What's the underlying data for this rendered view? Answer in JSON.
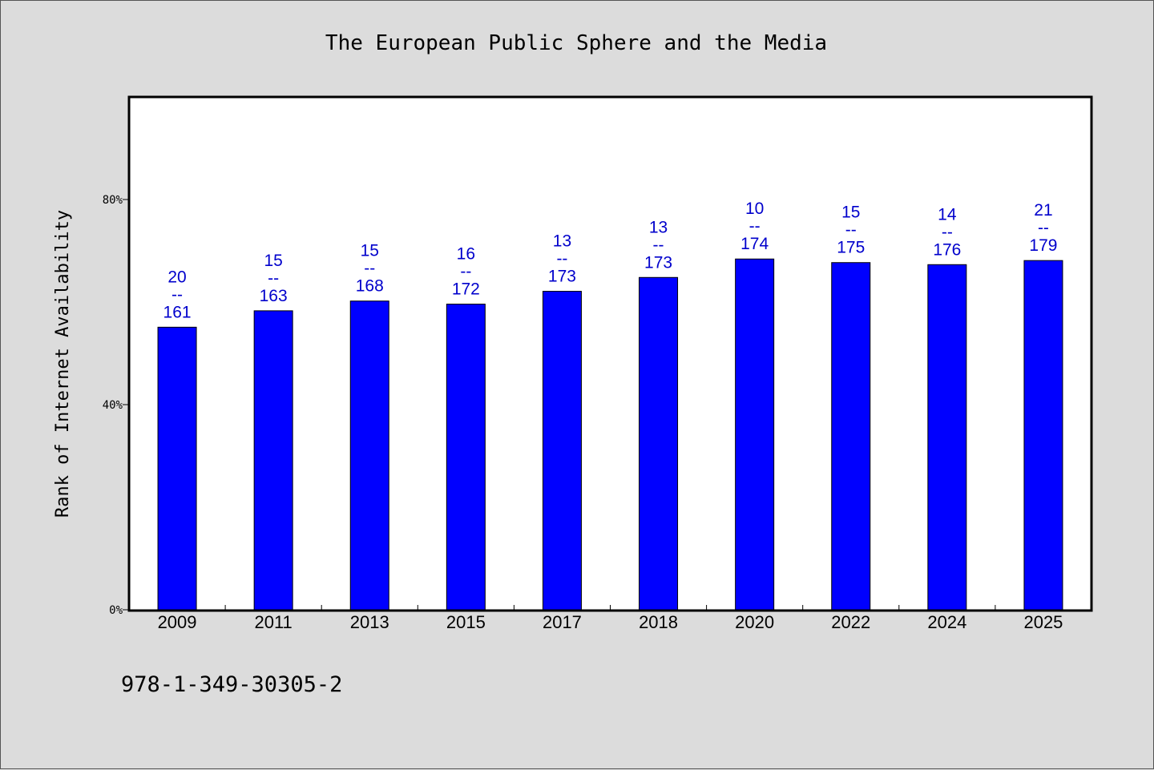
{
  "chart_data": {
    "type": "bar",
    "title": "The European Public Sphere and the Media",
    "xlabel": "",
    "ylabel": "Rank of Internet Availability",
    "ylim": [
      0,
      100
    ],
    "yticks": [
      0,
      40,
      80
    ],
    "ytick_labels": [
      "0%",
      "40%",
      "80%"
    ],
    "grid": false,
    "legend": "none",
    "bar_color": "#0000ff",
    "label_color": "#0000cc",
    "categories": [
      "2009",
      "2011",
      "2013",
      "2015",
      "2017",
      "2018",
      "2020",
      "2022",
      "2024",
      "2025"
    ],
    "values": [
      55.1,
      58.3,
      60.2,
      59.6,
      62.1,
      64.8,
      68.4,
      67.7,
      67.3,
      68.1
    ],
    "data_labels": [
      {
        "top": "20",
        "mid": "--",
        "bottom": "161"
      },
      {
        "top": "15",
        "mid": "--",
        "bottom": "163"
      },
      {
        "top": "15",
        "mid": "--",
        "bottom": "168"
      },
      {
        "top": "16",
        "mid": "--",
        "bottom": "172"
      },
      {
        "top": "13",
        "mid": "--",
        "bottom": "173"
      },
      {
        "top": "13",
        "mid": "--",
        "bottom": "173"
      },
      {
        "top": "10",
        "mid": "--",
        "bottom": "174"
      },
      {
        "top": "15",
        "mid": "--",
        "bottom": "175"
      },
      {
        "top": "14",
        "mid": "--",
        "bottom": "176"
      },
      {
        "top": "21",
        "mid": "--",
        "bottom": "179"
      }
    ]
  },
  "footer": {
    "isbn": "978-1-349-30305-2"
  }
}
